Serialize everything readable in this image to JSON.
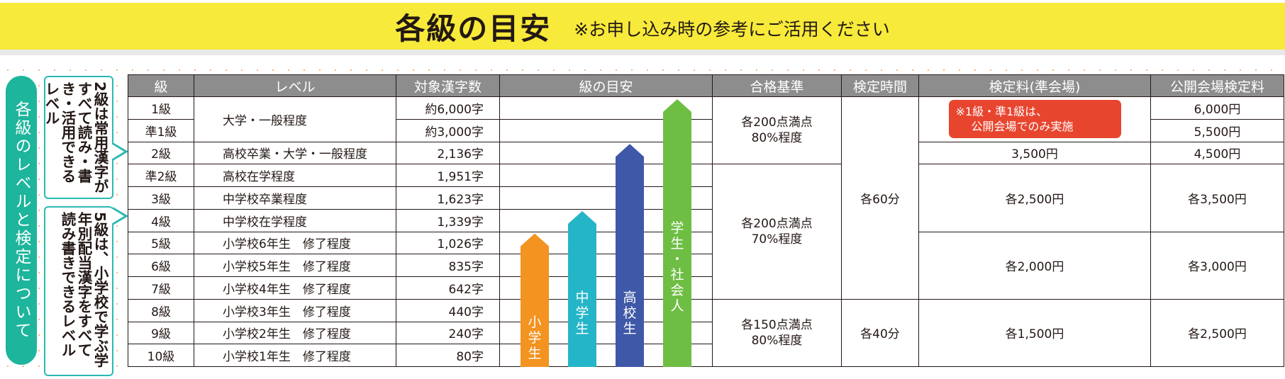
{
  "header": {
    "title": "各級の目安",
    "note": "※お申し込み時の参考にご活用ください"
  },
  "side": {
    "tab": "各級のレベルと検定について",
    "bubble_top": "2級は常用漢字がすべて読み・書き・活用できるレベル",
    "bubble_bottom": "5級は、小学校で学ぶ学年別配当漢字をすべて読み書きできるレベル"
  },
  "table": {
    "headers": [
      "級",
      "レベル",
      "対象漢字数",
      "級の目安",
      "合格基準",
      "検定時間",
      "検定料(準会場)",
      "公開会場検定料"
    ],
    "rows": [
      {
        "grade": "1級",
        "count": "約6,000字",
        "public_fee": "6,000円"
      },
      {
        "grade": "準1級",
        "count": "約3,000字",
        "public_fee": "5,500円"
      },
      {
        "grade": "2級",
        "level": "高校卒業・大学・一般程度",
        "count": "2,136字",
        "fee": "3,500円",
        "public_fee": "4,500円"
      },
      {
        "grade": "準2級",
        "level": "高校在学程度",
        "count": "1,951字"
      },
      {
        "grade": "3級",
        "level": "中学校卒業程度",
        "count": "1,623字"
      },
      {
        "grade": "4級",
        "level": "中学校在学程度",
        "count": "1,339字"
      },
      {
        "grade": "5級",
        "level": "小学校6年生　修了程度",
        "count": "1,026字"
      },
      {
        "grade": "6級",
        "level": "小学校5年生　修了程度",
        "count": "835字"
      },
      {
        "grade": "7級",
        "level": "小学校4年生　修了程度",
        "count": "642字"
      },
      {
        "grade": "8級",
        "level": "小学校3年生　修了程度",
        "count": "440字"
      },
      {
        "grade": "9級",
        "level": "小学校2年生　修了程度",
        "count": "240字"
      },
      {
        "grade": "10級",
        "level": "小学校1年生　修了程度",
        "count": "80字"
      }
    ],
    "level_1": "大学・一般程度",
    "pass_a": [
      "各200点満点",
      "80%程度"
    ],
    "pass_b": [
      "各200点満点",
      "70%程度"
    ],
    "pass_c": [
      "各150点満点",
      "80%程度"
    ],
    "time_a": "各60分",
    "time_b": "各40分",
    "red_note": [
      "※1級・準1級は、",
      "公開会場でのみ実施"
    ],
    "fee_b": "各2,500円",
    "fee_c": "各2,000円",
    "fee_d": "各1,500円",
    "public_b": "各3,500円",
    "public_c": "各3,000円",
    "public_d": "各2,500円"
  },
  "arrows": [
    {
      "label": "小学生",
      "color": "#f39320",
      "top_row": "5級"
    },
    {
      "label": "中学生",
      "color": "#25b5c9",
      "top_row": "4級"
    },
    {
      "label": "高校生",
      "color": "#3f58a8",
      "top_row": "2級"
    },
    {
      "label": "学生・社会人",
      "color": "#6ebe44",
      "top_row": "1級"
    }
  ]
}
